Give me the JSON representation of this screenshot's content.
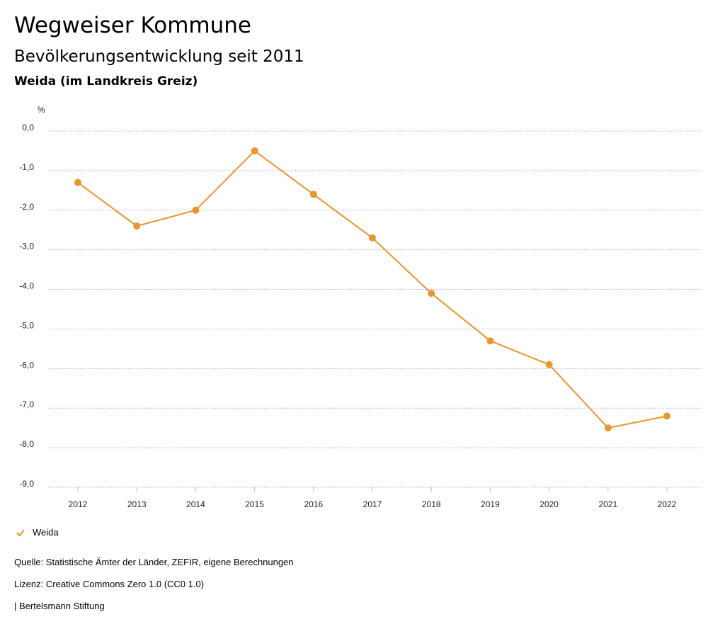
{
  "header": {
    "title": "Wegweiser Kommune",
    "subtitle": "Bevölkerungsentwicklung seit 2011",
    "region": "Weida (im Landkreis Greiz)"
  },
  "chart_data": {
    "type": "line",
    "title": "Bevölkerungsentwicklung seit 2011",
    "ylabel": "%",
    "xlabel": "",
    "categories": [
      "2012",
      "2013",
      "2014",
      "2015",
      "2016",
      "2017",
      "2018",
      "2019",
      "2020",
      "2021",
      "2022"
    ],
    "series": [
      {
        "name": "Weida",
        "color": "#e8962e",
        "values": [
          -1.3,
          -2.4,
          -2.0,
          -0.5,
          -1.6,
          -2.7,
          -4.1,
          -5.3,
          -5.9,
          -7.5,
          -7.2
        ]
      }
    ],
    "ylim": [
      -9,
      0
    ],
    "yticks": [
      0,
      -1,
      -2,
      -3,
      -4,
      -5,
      -6,
      -7,
      -8,
      -9
    ],
    "ytick_labels": [
      "0,0",
      "-1,0",
      "-2,0",
      "-3,0",
      "-4,0",
      "-5,0",
      "-6,0",
      "-7,0",
      "-8,0",
      "-9,0"
    ],
    "grid": true,
    "legend": "bottom-left"
  },
  "legend": {
    "label": "Weida",
    "color": "#e8962e"
  },
  "footer": {
    "source": "Quelle: Statistische Ämter der Länder, ZEFIR, eigene Berechnungen",
    "license": "Lizenz: Creative Commons Zero 1.0 (CC0 1.0)",
    "brand": "| Bertelsmann Stiftung"
  }
}
